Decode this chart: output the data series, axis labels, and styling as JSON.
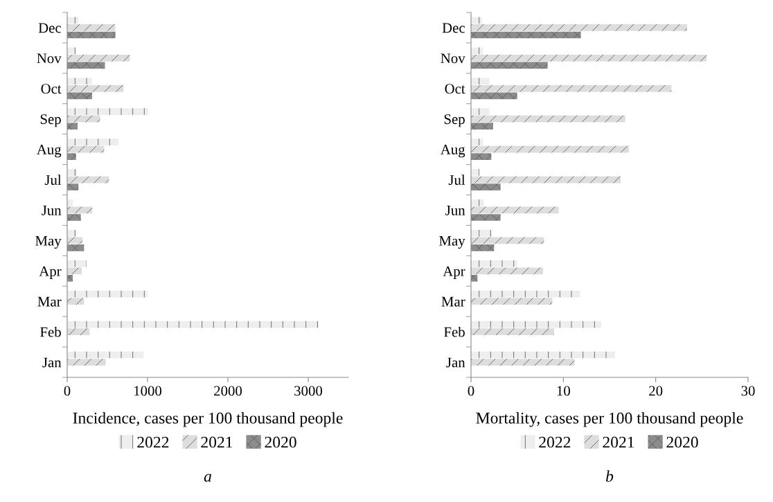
{
  "chart_data": [
    {
      "type": "bar",
      "orientation": "horizontal",
      "xlabel": "Incidence, cases per 100 thousand people",
      "categories": [
        "Dec",
        "Nov",
        "Oct",
        "Sep",
        "Aug",
        "Jul",
        "Jun",
        "May",
        "Apr",
        "Mar",
        "Feb",
        "Jan"
      ],
      "xlim": [
        0,
        3500
      ],
      "xticks": [
        0,
        1000,
        2000,
        3000
      ],
      "grid": false,
      "legend": "bottom",
      "annotations": [
        "a"
      ],
      "series": [
        {
          "name": "2022",
          "color": "#eeeeee",
          "values": [
            140,
            110,
            310,
            1010,
            640,
            120,
            70,
            110,
            240,
            1000,
            3130,
            950
          ]
        },
        {
          "name": "2021",
          "color": "#dddddd",
          "values": [
            600,
            780,
            700,
            410,
            460,
            520,
            310,
            190,
            180,
            210,
            280,
            480
          ]
        },
        {
          "name": "2020",
          "color": "#8c8c8c",
          "values": [
            600,
            470,
            310,
            130,
            110,
            140,
            170,
            210,
            70,
            null,
            null,
            null
          ]
        }
      ]
    },
    {
      "type": "bar",
      "orientation": "horizontal",
      "xlabel": "Mortality, cases per 100 thousand people",
      "categories": [
        "Dec",
        "Nov",
        "Oct",
        "Sep",
        "Aug",
        "Jul",
        "Jun",
        "May",
        "Apr",
        "Mar",
        "Feb",
        "Jan"
      ],
      "xlim": [
        0,
        30
      ],
      "xticks": [
        0,
        10,
        20,
        30
      ],
      "grid": false,
      "legend": "bottom",
      "annotations": [
        "b"
      ],
      "series": [
        {
          "name": "2022",
          "color": "#eeeeee",
          "values": [
            1.2,
            1.3,
            2.0,
            2.0,
            1.3,
            0.9,
            1.4,
            2.2,
            5.0,
            11.8,
            14.1,
            15.6
          ]
        },
        {
          "name": "2021",
          "color": "#dddddd",
          "values": [
            23.4,
            25.5,
            21.7,
            16.7,
            17.1,
            16.2,
            9.5,
            7.9,
            7.8,
            8.8,
            9.0,
            11.2
          ]
        },
        {
          "name": "2020",
          "color": "#8c8c8c",
          "values": [
            11.9,
            8.3,
            5.0,
            2.4,
            2.2,
            3.2,
            3.2,
            2.5,
            0.7,
            null,
            null,
            null
          ]
        }
      ]
    }
  ]
}
